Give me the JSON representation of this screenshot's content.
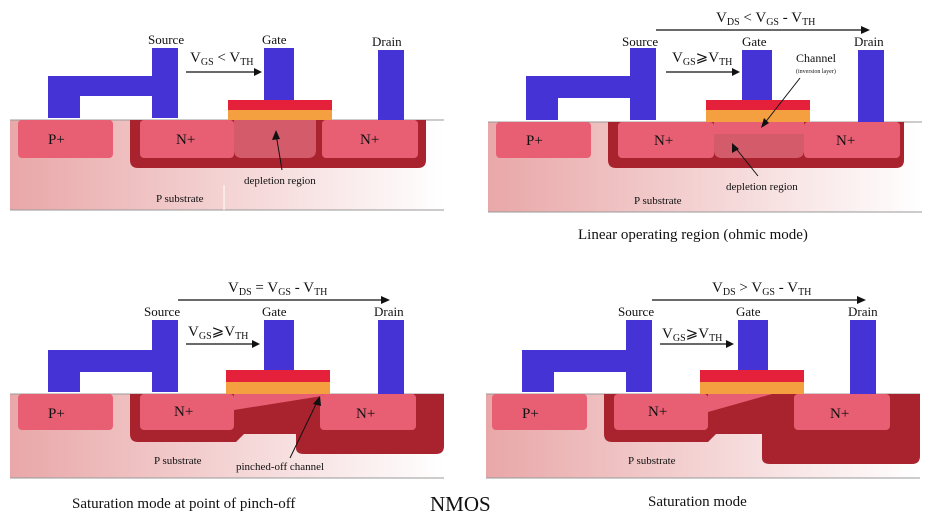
{
  "title": "NMOS",
  "colors": {
    "metal": "#4633d6",
    "n_region": "#e85f73",
    "p_region": "#e85f73",
    "depletion": "#a8232e",
    "gate_oxide_top": "#e5203a",
    "gate_oxide_bottom": "#f5a040",
    "substrate_start": "#e9a7a8",
    "substrate_end": "#ffffff"
  },
  "panels": [
    {
      "id": "cutoff",
      "caption": "",
      "vds": null,
      "vgs": {
        "label_main": "V",
        "sub1": "GS",
        "rel": " < ",
        "label2": "V",
        "sub2": "TH"
      },
      "terminals": {
        "source": "Source",
        "gate": "Gate",
        "drain": "Drain"
      },
      "regions": {
        "p": "P+",
        "n1": "N+",
        "n2": "N+",
        "substrate": "P substrate"
      },
      "annotations": [
        "depletion region"
      ]
    },
    {
      "id": "linear",
      "caption": "Linear operating region (ohmic mode)",
      "vds": {
        "a": "V",
        "asub": "DS",
        "rel": " < ",
        "b": "V",
        "bsub": "GS",
        "mid": " -  ",
        "c": "V",
        "csub": "TH"
      },
      "vgs": {
        "label_main": "V",
        "sub1": "GS",
        "rel": "⩾",
        "label2": "V",
        "sub2": "TH"
      },
      "terminals": {
        "source": "Source",
        "gate": "Gate",
        "drain": "Drain"
      },
      "regions": {
        "p": "P+",
        "n1": "N+",
        "n2": "N+",
        "substrate": "P substrate"
      },
      "annotations": [
        "Channel",
        "(inversion layer)",
        "depletion region"
      ]
    },
    {
      "id": "pinchoff",
      "caption": "Saturation mode at point of pinch-off",
      "vds": {
        "a": "V",
        "asub": "DS",
        "rel": " =  ",
        "b": "V",
        "bsub": "GS",
        "mid": " -  ",
        "c": "V",
        "csub": "TH"
      },
      "vgs": {
        "label_main": "V",
        "sub1": "GS",
        "rel": "⩾",
        "label2": "V",
        "sub2": "TH"
      },
      "terminals": {
        "source": "Source",
        "gate": "Gate",
        "drain": "Drain"
      },
      "regions": {
        "p": "P+",
        "n1": "N+",
        "n2": "N+",
        "substrate": "P substrate"
      },
      "annotations": [
        "pinched-off channel"
      ]
    },
    {
      "id": "saturation",
      "caption": "Saturation mode",
      "vds": {
        "a": "V",
        "asub": "DS",
        "rel": " > ",
        "b": "V",
        "bsub": "GS",
        "mid": " -  ",
        "c": "V",
        "csub": "TH"
      },
      "vgs": {
        "label_main": "V",
        "sub1": "GS",
        "rel": "⩾",
        "label2": "V",
        "sub2": "TH"
      },
      "terminals": {
        "source": "Source",
        "gate": "Gate",
        "drain": "Drain"
      },
      "regions": {
        "p": "P+",
        "n1": "N+",
        "n2": "N+",
        "substrate": "P substrate"
      },
      "annotations": []
    }
  ]
}
